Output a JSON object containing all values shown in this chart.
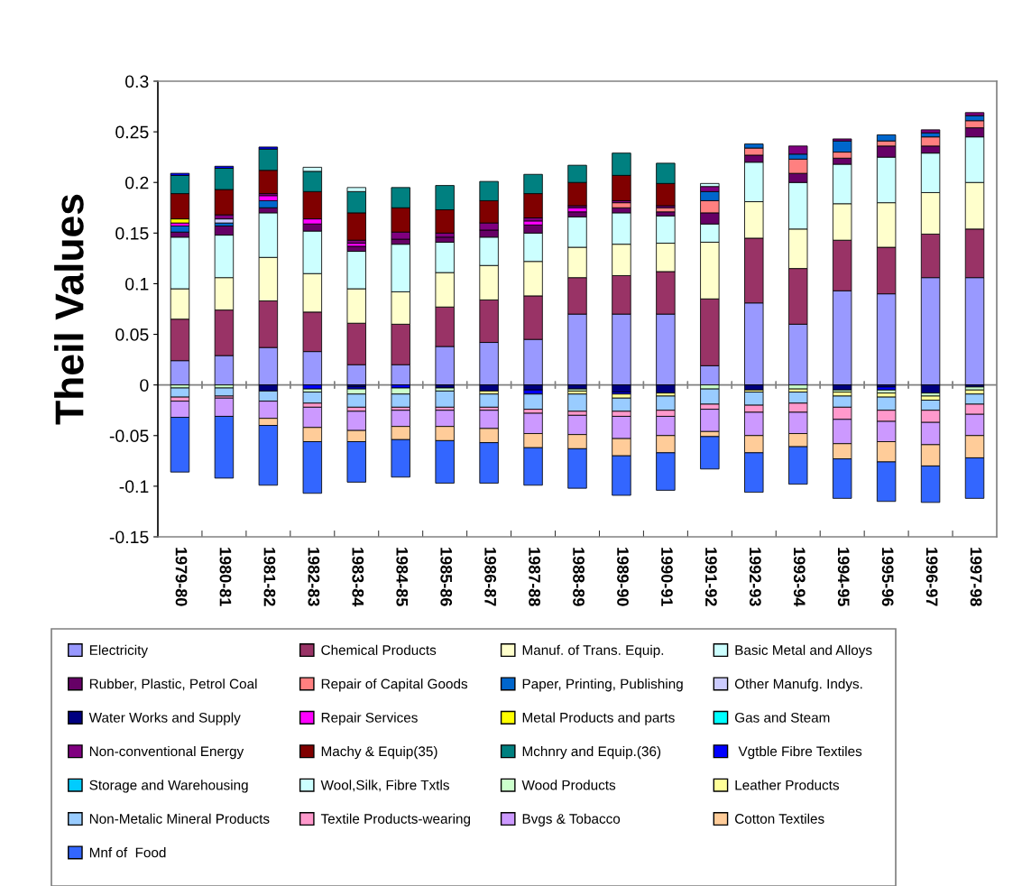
{
  "chart_data": {
    "type": "bar",
    "stacked": true,
    "ylabel": "Theil Values",
    "ylim": [
      -0.15,
      0.3
    ],
    "yticks": [
      -0.15,
      -0.1,
      -0.05,
      0,
      0.05,
      0.1,
      0.15,
      0.2,
      0.25,
      0.3
    ],
    "grid": false,
    "legend": "bottom",
    "ref_lines": [
      {
        "axis": "y",
        "value": 0,
        "color": "#808080"
      }
    ],
    "categories": [
      "1979-80",
      "1980-81",
      "1981-82",
      "1982-83",
      "1983-84",
      "1984-85",
      "1985-86",
      "1986-87",
      "1987-88",
      "1988-89",
      "1989-90",
      "1990-91",
      "1991-92",
      "1992-93",
      "1993-94",
      "1994-95",
      "1995-96",
      "1996-97",
      "1997-98"
    ],
    "series": [
      {
        "name": "Electricity",
        "color": "#9999ff",
        "values": [
          0.024,
          0.029,
          0.037,
          0.033,
          0.02,
          0.02,
          0.038,
          0.042,
          0.045,
          0.07,
          0.07,
          0.07,
          0.019,
          0.081,
          0.06,
          0.093,
          0.09,
          0.106,
          0.106
        ]
      },
      {
        "name": "Chemical Products",
        "color": "#993366",
        "values": [
          0.041,
          0.045,
          0.046,
          0.039,
          0.041,
          0.04,
          0.039,
          0.042,
          0.043,
          0.036,
          0.038,
          0.042,
          0.066,
          0.064,
          0.055,
          0.05,
          0.046,
          0.043,
          0.048
        ]
      },
      {
        "name": "Manuf. of Trans. Equip.",
        "color": "#ffffcc",
        "values": [
          0.03,
          0.032,
          0.043,
          0.038,
          0.034,
          0.032,
          0.034,
          0.034,
          0.034,
          0.03,
          0.031,
          0.028,
          0.056,
          0.036,
          0.039,
          0.036,
          0.044,
          0.041,
          0.046
        ]
      },
      {
        "name": "Basic Metal and Alloys",
        "color": "#ccffff",
        "values": [
          0.051,
          0.042,
          0.044,
          0.042,
          0.037,
          0.047,
          0.03,
          0.028,
          0.028,
          0.03,
          0.031,
          0.027,
          0.018,
          0.039,
          0.046,
          0.039,
          0.045,
          0.039,
          0.045
        ]
      },
      {
        "name": "Rubber, Plastic, Petrol Coal",
        "color": "#660066",
        "values": [
          0.005,
          0.009,
          0.005,
          0.007,
          0.005,
          0.005,
          0.005,
          0.007,
          0.008,
          0.005,
          0.005,
          0.004,
          0.011,
          0.007,
          0.009,
          0.006,
          0.011,
          0.007,
          0.009
        ]
      },
      {
        "name": "Repair of Capital Goods",
        "color": "#ff8080",
        "values": [
          null,
          null,
          null,
          null,
          null,
          null,
          null,
          null,
          null,
          null,
          0.005,
          0.004,
          0.012,
          0.007,
          0.014,
          0.006,
          0.005,
          0.009,
          0.007
        ]
      },
      {
        "name": "Paper, Printing, Publishing",
        "color": "#0066cc",
        "values": [
          0.006,
          0.003,
          0.007,
          null,
          null,
          null,
          null,
          null,
          null,
          null,
          null,
          null,
          0.009,
          0.004,
          0.005,
          0.011,
          0.006,
          0.004,
          0.005
        ]
      },
      {
        "name": "Other Manufg. Indys.",
        "color": "#ccccff",
        "values": [
          null,
          0.004,
          null,
          null,
          null,
          null,
          null,
          null,
          null,
          null,
          null,
          null,
          null,
          null,
          null,
          null,
          null,
          null,
          null
        ]
      },
      {
        "name": "Water Works and Supply",
        "color": "#000080",
        "values": [
          null,
          null,
          -0.006,
          null,
          -0.002,
          null,
          -0.003,
          -0.006,
          -0.005,
          -0.004,
          -0.007,
          -0.008,
          null,
          -0.005,
          null,
          -0.005,
          -0.002,
          -0.008,
          -0.002
        ]
      },
      {
        "name": "Repair Services",
        "color": "#ff00ff",
        "values": [
          0.003,
          null,
          0.005,
          0.005,
          0.003,
          null,
          null,
          null,
          0.004,
          0.004,
          null,
          null,
          null,
          null,
          null,
          null,
          null,
          null,
          null
        ]
      },
      {
        "name": "Metal Products and parts",
        "color": "#ffff00",
        "values": [
          0.004,
          null,
          null,
          null,
          null,
          null,
          null,
          null,
          null,
          null,
          null,
          null,
          null,
          null,
          null,
          null,
          null,
          null,
          null
        ]
      },
      {
        "name": "Gas and Steam",
        "color": "#00ffff",
        "values": [
          null,
          null,
          null,
          null,
          null,
          null,
          null,
          null,
          null,
          null,
          null,
          null,
          null,
          null,
          null,
          null,
          null,
          null,
          null
        ]
      },
      {
        "name": "Non-conventional Energy",
        "color": "#800080",
        "values": [
          null,
          0.004,
          0.002,
          null,
          0.003,
          0.007,
          0.004,
          0.007,
          0.003,
          0.002,
          0.002,
          0.002,
          0.005,
          null,
          0.008,
          0.002,
          null,
          0.003,
          0.003
        ]
      },
      {
        "name": "Machy & Equip(35)",
        "color": "#800000",
        "values": [
          0.025,
          0.025,
          0.023,
          0.027,
          0.027,
          0.024,
          0.023,
          0.022,
          0.024,
          0.023,
          0.025,
          0.022,
          null,
          null,
          null,
          null,
          null,
          null,
          null
        ]
      },
      {
        "name": "Mchnry and Equip.(36)",
        "color": "#008080",
        "values": [
          0.018,
          0.021,
          0.021,
          0.02,
          0.021,
          0.02,
          0.024,
          0.019,
          0.019,
          0.017,
          0.022,
          0.02,
          null,
          null,
          null,
          null,
          null,
          null,
          null
        ]
      },
      {
        "name": " Vgtble Fibre Textiles",
        "color": "#0000ff",
        "values": [
          0.002,
          0.002,
          0.002,
          -0.004,
          -0.002,
          -0.003,
          null,
          null,
          -0.004,
          null,
          -0.002,
          null,
          null,
          null,
          null,
          null,
          -0.003,
          null,
          null
        ]
      },
      {
        "name": "Storage and Warehousing",
        "color": "#00ccff",
        "values": [
          null,
          null,
          null,
          null,
          null,
          null,
          null,
          null,
          null,
          null,
          null,
          null,
          null,
          null,
          null,
          null,
          null,
          null,
          null
        ]
      },
      {
        "name": "Wool,Silk, Fibre Txtls",
        "color": "#ccffff",
        "values": [
          null,
          null,
          null,
          0.004,
          0.004,
          null,
          null,
          null,
          null,
          null,
          null,
          null,
          0.003,
          null,
          null,
          null,
          null,
          null,
          null
        ]
      },
      {
        "name": "Wood Products",
        "color": "#ccffcc",
        "values": [
          -0.003,
          -0.003,
          null,
          -0.003,
          -0.005,
          -0.006,
          -0.003,
          null,
          null,
          -0.002,
          null,
          null,
          -0.004,
          null,
          -0.004,
          -0.002,
          -0.003,
          -0.003,
          -0.003
        ]
      },
      {
        "name": "Leather Products",
        "color": "#ffff99",
        "values": [
          null,
          null,
          null,
          null,
          null,
          null,
          null,
          -0.003,
          null,
          -0.003,
          -0.004,
          -0.003,
          null,
          -0.002,
          -0.003,
          -0.004,
          -0.004,
          -0.004,
          -0.004
        ]
      },
      {
        "name": "Non-Metalic Mineral Products",
        "color": "#99ccff",
        "values": [
          -0.009,
          -0.008,
          -0.01,
          -0.011,
          -0.013,
          -0.013,
          -0.016,
          -0.013,
          -0.015,
          -0.017,
          -0.013,
          -0.014,
          -0.015,
          -0.013,
          -0.011,
          -0.011,
          -0.013,
          -0.01,
          -0.01
        ]
      },
      {
        "name": "Textile Products-wearing",
        "color": "#ff99cc",
        "values": [
          -0.004,
          -0.002,
          null,
          -0.004,
          -0.004,
          -0.003,
          -0.003,
          -0.003,
          -0.004,
          -0.004,
          -0.005,
          -0.006,
          -0.005,
          -0.007,
          -0.009,
          -0.012,
          -0.011,
          -0.012,
          -0.01
        ]
      },
      {
        "name": "Bvgs & Tobacco",
        "color": "#cc99ff",
        "values": [
          -0.016,
          -0.018,
          -0.017,
          -0.02,
          -0.019,
          -0.016,
          -0.016,
          -0.018,
          -0.02,
          -0.019,
          -0.022,
          -0.019,
          -0.022,
          -0.023,
          -0.021,
          -0.024,
          -0.02,
          -0.022,
          -0.021
        ]
      },
      {
        "name": "Cotton Textiles",
        "color": "#ffcc99",
        "values": [
          null,
          null,
          -0.007,
          -0.014,
          -0.011,
          -0.013,
          -0.014,
          -0.014,
          -0.014,
          -0.014,
          -0.017,
          -0.017,
          -0.005,
          -0.017,
          -0.013,
          -0.015,
          -0.02,
          -0.021,
          -0.022
        ]
      },
      {
        "name": "Mnf of  Food",
        "color": "#3366ff",
        "values": [
          -0.054,
          -0.061,
          -0.059,
          -0.051,
          -0.04,
          -0.037,
          -0.042,
          -0.04,
          -0.037,
          -0.039,
          -0.039,
          -0.037,
          -0.032,
          -0.039,
          -0.037,
          -0.039,
          -0.039,
          -0.036,
          -0.04
        ]
      }
    ]
  }
}
